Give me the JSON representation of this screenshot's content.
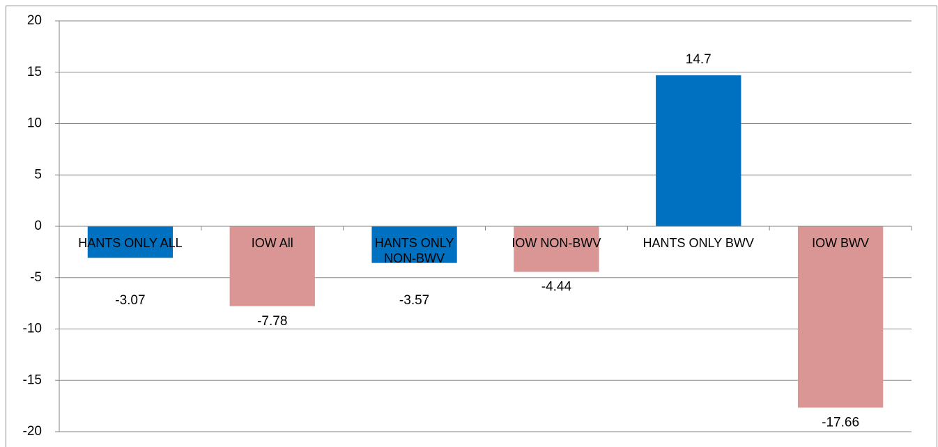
{
  "chart_data": {
    "type": "bar",
    "categories": [
      "HANTS ONLY ALL",
      "IOW All",
      "HANTS ONLY NON-BWV",
      "IOW NON-BWV",
      "HANTS ONLY BWV",
      "IOW BWV"
    ],
    "values": [
      -3.07,
      -7.78,
      -3.57,
      -4.44,
      14.7,
      -17.66
    ],
    "colors": [
      "#0070c0",
      "#d99694",
      "#0070c0",
      "#d99694",
      "#0070c0",
      "#d99694"
    ],
    "ylim": [
      -20,
      20
    ],
    "yticks": [
      -20,
      -15,
      -10,
      -5,
      0,
      5,
      10,
      15,
      20
    ],
    "grid": true
  }
}
